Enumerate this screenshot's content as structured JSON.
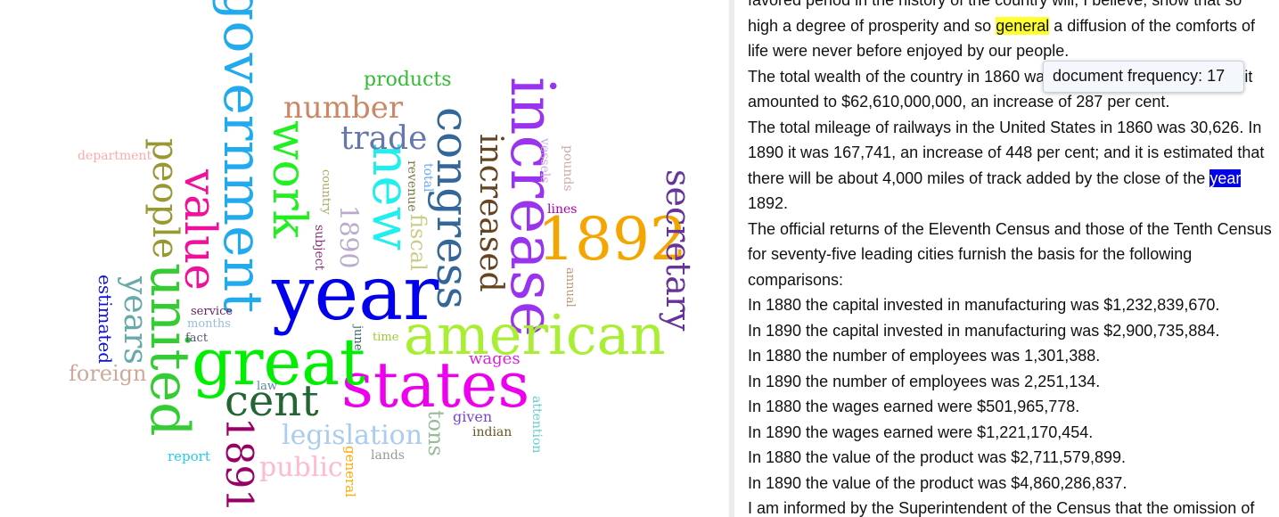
{
  "word_cloud": {
    "words": [
      {
        "id": "government",
        "text": "government",
        "color": "#22aaee"
      },
      {
        "id": "increase",
        "text": "increase",
        "color": "#9933ee"
      },
      {
        "id": "year",
        "text": "year",
        "color": "#0000ee"
      },
      {
        "id": "states",
        "text": "states",
        "color": "#ee00ee"
      },
      {
        "id": "great",
        "text": "great",
        "color": "#00ee00"
      },
      {
        "id": "american",
        "text": "american",
        "color": "#aaee33"
      },
      {
        "id": "1892",
        "text": "1892",
        "color": "#f5a500"
      },
      {
        "id": "new",
        "text": "new",
        "color": "#22eeee"
      },
      {
        "id": "congress",
        "text": "congress",
        "color": "#336699"
      },
      {
        "id": "united",
        "text": "united",
        "color": "#33cc33"
      },
      {
        "id": "work",
        "text": "work",
        "color": "#22ee22"
      },
      {
        "id": "value",
        "text": "value",
        "color": "#ee1199"
      },
      {
        "id": "people",
        "text": "people",
        "color": "#999933"
      },
      {
        "id": "cent",
        "text": "cent",
        "color": "#226633"
      },
      {
        "id": "increased",
        "text": "increased",
        "color": "#664422"
      },
      {
        "id": "secretary",
        "text": "secretary",
        "color": "#663399"
      },
      {
        "id": "1891",
        "text": "1891",
        "color": "#990066"
      },
      {
        "id": "number",
        "text": "number",
        "color": "#cc8866"
      },
      {
        "id": "trade",
        "text": "trade",
        "color": "#6677aa"
      },
      {
        "id": "years",
        "text": "years",
        "color": "#66aaaa"
      },
      {
        "id": "legislation",
        "text": "legislation",
        "color": "#aaccee"
      },
      {
        "id": "public",
        "text": "public",
        "color": "#ffbbcc"
      },
      {
        "id": "1890",
        "text": "1890",
        "color": "#bbaacc"
      },
      {
        "id": "foreign",
        "text": "foreign",
        "color": "#ccaa99"
      },
      {
        "id": "products",
        "text": "products",
        "color": "#33bb33"
      },
      {
        "id": "fiscal",
        "text": "fiscal",
        "color": "#cccc88"
      },
      {
        "id": "tons",
        "text": "tons",
        "color": "#99bb99"
      },
      {
        "id": "wages",
        "text": "wages",
        "color": "#dd22dd"
      },
      {
        "id": "estimated",
        "text": "estimated",
        "color": "#1111dd"
      },
      {
        "id": "department",
        "text": "department",
        "color": "#ffaaaa"
      },
      {
        "id": "given",
        "text": "given",
        "color": "#7744cc"
      },
      {
        "id": "indian",
        "text": "indian",
        "color": "#665522"
      },
      {
        "id": "attention",
        "text": "attention",
        "color": "#66cccc"
      },
      {
        "id": "report",
        "text": "report",
        "color": "#22ccee"
      },
      {
        "id": "general",
        "text": "general",
        "color": "#ffaa00"
      },
      {
        "id": "lands",
        "text": "lands",
        "color": "#999999"
      },
      {
        "id": "law",
        "text": "law",
        "color": "#558899"
      },
      {
        "id": "service",
        "text": "service",
        "color": "#662266"
      },
      {
        "id": "months",
        "text": "months",
        "color": "#99bbdd"
      },
      {
        "id": "fact",
        "text": "fact",
        "color": "#555577"
      },
      {
        "id": "time",
        "text": "time",
        "color": "#99cc33"
      },
      {
        "id": "june",
        "text": "june",
        "color": "#336666"
      },
      {
        "id": "lines",
        "text": "lines",
        "color": "#aa00aa"
      },
      {
        "id": "annual",
        "text": "annual",
        "color": "#bb9977"
      },
      {
        "id": "pounds",
        "text": "pounds",
        "color": "#ccaaaa"
      },
      {
        "id": "vessels",
        "text": "vessels",
        "color": "#ccaadd"
      },
      {
        "id": "total",
        "text": "total",
        "color": "#66aaee"
      },
      {
        "id": "revenue",
        "text": "revenue",
        "color": "#777744"
      },
      {
        "id": "country",
        "text": "country",
        "color": "#aaaa66"
      },
      {
        "id": "subject",
        "text": "subject",
        "color": "#883377"
      }
    ]
  },
  "document": {
    "lines": [
      {
        "id": "l0",
        "parts": [
          {
            "t": "favored period in the history of the country will, I believe, show that so"
          }
        ]
      },
      {
        "id": "l1",
        "parts": [
          {
            "t": "high a degree of prosperity and so "
          },
          {
            "t": "general",
            "hl": "yellow"
          },
          {
            "t": " a diffusion of the comforts of"
          }
        ]
      },
      {
        "id": "l2",
        "parts": [
          {
            "t": "life were never before enjoyed by our people."
          }
        ]
      },
      {
        "id": "l3",
        "parts": [
          {
            "t": "The total wealth of the country in 1860 was $16,159,616,068. In 1890 it"
          }
        ]
      },
      {
        "id": "l4",
        "parts": [
          {
            "t": "amounted to $62,610,000,000, an increase of 287 per cent."
          }
        ]
      },
      {
        "id": "l5",
        "parts": [
          {
            "t": "The total mileage of railways in the United States in 1860 was 30,626. In"
          }
        ]
      },
      {
        "id": "l6",
        "parts": [
          {
            "t": "1890 it was 167,741, an increase of 448 per cent; and it is estimated that"
          }
        ]
      },
      {
        "id": "l7",
        "parts": [
          {
            "t": "there will be about 4,000 miles of track added by the close of the "
          },
          {
            "t": "year",
            "hl": "blue"
          }
        ]
      },
      {
        "id": "l8",
        "parts": [
          {
            "t": "1892."
          }
        ]
      },
      {
        "id": "l9",
        "parts": [
          {
            "t": "The official returns of the Eleventh Census and those of the Tenth Census"
          }
        ]
      },
      {
        "id": "l10",
        "parts": [
          {
            "t": "for seventy-five leading cities furnish the basis for the following"
          }
        ]
      },
      {
        "id": "l11",
        "parts": [
          {
            "t": "comparisons:"
          }
        ]
      },
      {
        "id": "l12",
        "parts": [
          {
            "t": "In 1880 the capital invested in manufacturing was $1,232,839,670."
          }
        ]
      },
      {
        "id": "l13",
        "parts": [
          {
            "t": "In 1890 the capital invested in manufacturing was $2,900,735,884."
          }
        ]
      },
      {
        "id": "l14",
        "parts": [
          {
            "t": "In 1880 the number of employees was 1,301,388."
          }
        ]
      },
      {
        "id": "l15",
        "parts": [
          {
            "t": "In 1890 the number of employees was 2,251,134."
          }
        ]
      },
      {
        "id": "l16",
        "parts": [
          {
            "t": "In 1880 the wages earned were $501,965,778."
          }
        ]
      },
      {
        "id": "l17",
        "parts": [
          {
            "t": "In 1890 the wages earned were $1,221,170,454."
          }
        ]
      },
      {
        "id": "l18",
        "parts": [
          {
            "t": "In 1880 the value of the product was $2,711,579,899."
          }
        ]
      },
      {
        "id": "l19",
        "parts": [
          {
            "t": "In 1890 the value of the product was $4,860,286,837."
          }
        ]
      },
      {
        "id": "l20",
        "parts": [
          {
            "t": "I am informed by the Superintendent of the Census that the omission of"
          }
        ]
      }
    ]
  },
  "tooltip": {
    "label": "document frequency:",
    "value": "17"
  }
}
